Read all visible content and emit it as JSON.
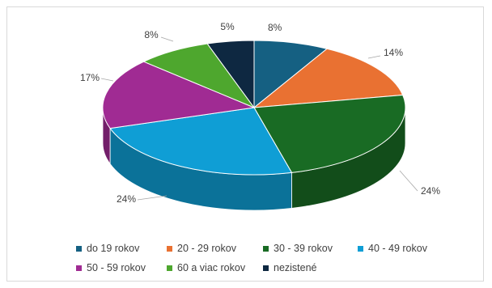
{
  "chart_data": {
    "type": "pie",
    "style": "3d",
    "categories": [
      "do 19 rokov",
      "20 - 29 rokov",
      "30 - 39 rokov",
      "40 - 49 rokov",
      "50 - 59 rokov",
      "60 a viac rokov",
      "nezistené"
    ],
    "values": [
      8,
      14,
      24,
      24,
      17,
      8,
      5
    ],
    "labels": [
      "8%",
      "14%",
      "24%",
      "24%",
      "17%",
      "8%",
      "5%"
    ],
    "colors": [
      "#156082",
      "#E97132",
      "#196B24",
      "#0F9ED5",
      "#A02B93",
      "#4EA72E",
      "#0E2841"
    ],
    "title": "",
    "legend_position": "bottom"
  }
}
